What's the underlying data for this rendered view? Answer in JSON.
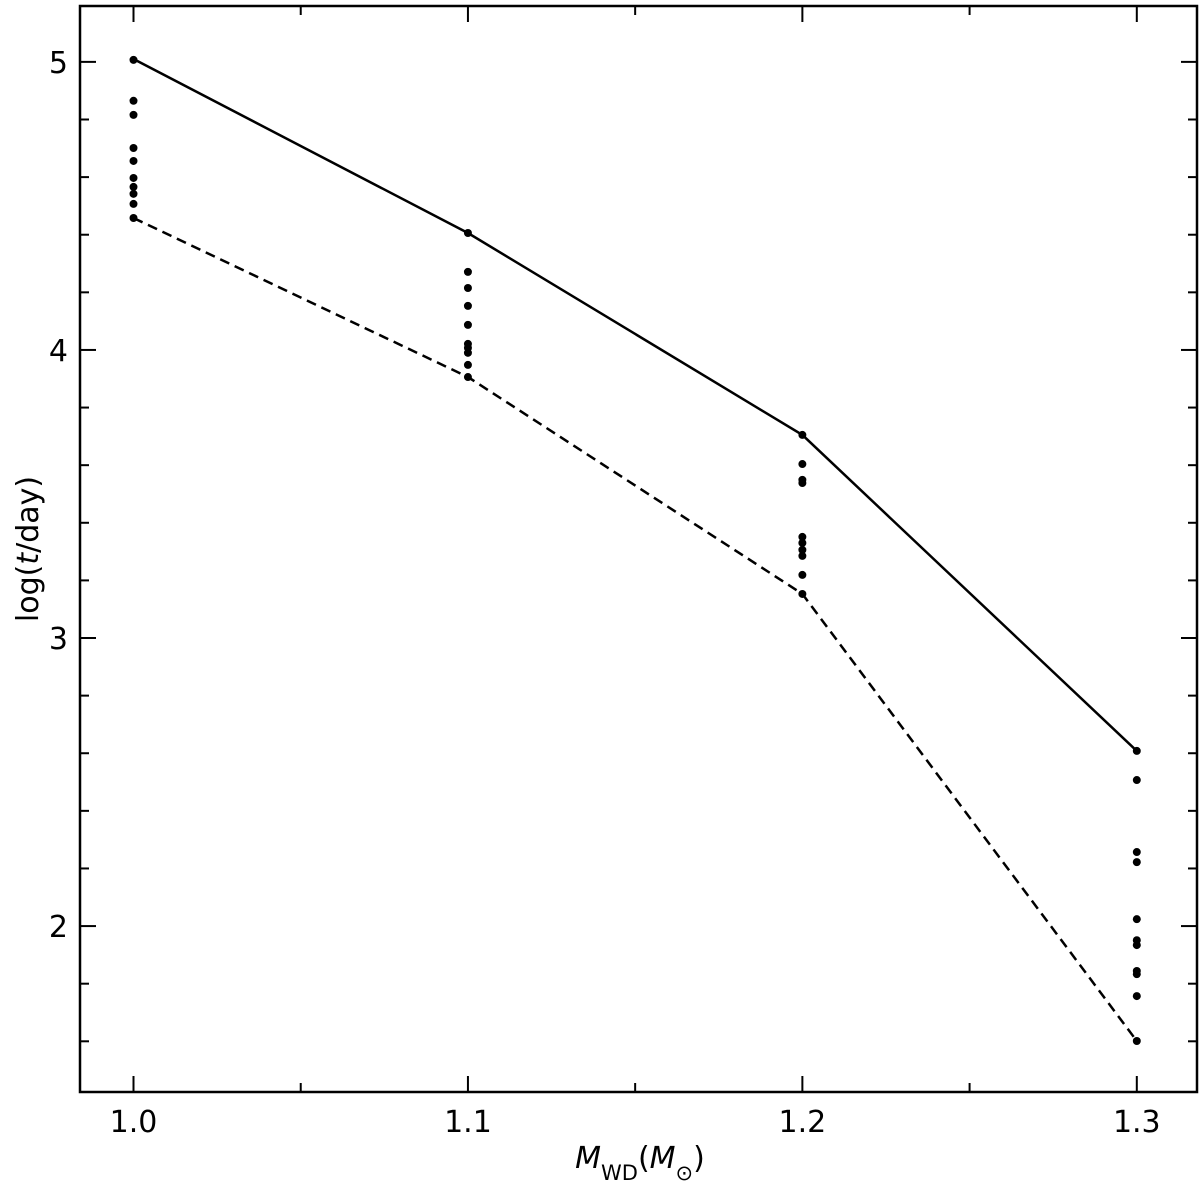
{
  "chart_data": {
    "type": "line",
    "xlabel": [
      {
        "text": "M",
        "italic": true
      },
      {
        "text": "WD",
        "sub": true
      },
      {
        "text": "("
      },
      {
        "text": "M",
        "italic": true
      },
      {
        "text": "⊙",
        "sub": true
      },
      {
        "text": ")"
      }
    ],
    "ylabel": [
      {
        "text": "log("
      },
      {
        "text": "t",
        "italic": true
      },
      {
        "text": "/day)"
      }
    ],
    "xlim": [
      0.984,
      1.318
    ],
    "ylim": [
      1.424,
      5.194
    ],
    "xticks": [
      {
        "value": 1.0,
        "label": "1.0"
      },
      1.1,
      1.2,
      1.3
    ],
    "yticks": [
      2,
      3,
      4,
      5
    ],
    "xminorticks": [
      1.05,
      1.15,
      1.25
    ],
    "yminorticks": [
      1.6,
      1.8,
      2.2,
      2.4,
      2.6,
      2.8,
      3.2,
      3.4,
      3.6,
      3.8,
      4.2,
      4.4,
      4.6,
      4.8,
      5.2
    ],
    "series": [
      {
        "type": "line",
        "linestyle": "solid",
        "color": "#000000",
        "x": [
          1.0,
          1.1,
          1.2,
          1.3
        ],
        "values": [
          5.01,
          4.406,
          3.705,
          2.608
        ]
      },
      {
        "type": "line",
        "linestyle": "dashed",
        "color": "#000000",
        "x": [
          1.0,
          1.1,
          1.2,
          1.3
        ],
        "values": [
          4.458,
          3.906,
          3.153,
          1.601
        ]
      },
      {
        "type": "scatter",
        "color": "#000000",
        "x": [
          1.0,
          1.0,
          1.0,
          1.0,
          1.0,
          1.0,
          1.0,
          1.0,
          1.0,
          1.0,
          1.1,
          1.1,
          1.1,
          1.1,
          1.1,
          1.1,
          1.1,
          1.1,
          1.1,
          1.1,
          1.2,
          1.2,
          1.2,
          1.2,
          1.2,
          1.2,
          1.2,
          1.2,
          1.2,
          1.2,
          1.3,
          1.3,
          1.3,
          1.3,
          1.3,
          1.3,
          1.3,
          1.3,
          1.3,
          1.3,
          1.3
        ],
        "values": [
          5.007,
          4.865,
          4.816,
          4.701,
          4.656,
          4.597,
          4.566,
          4.542,
          4.507,
          4.458,
          4.406,
          4.271,
          4.215,
          4.153,
          4.087,
          4.021,
          4.007,
          3.99,
          3.948,
          3.906,
          3.705,
          3.604,
          3.549,
          3.538,
          3.351,
          3.33,
          3.306,
          3.285,
          3.219,
          3.153,
          2.608,
          2.507,
          2.257,
          2.222,
          2.024,
          1.951,
          1.934,
          1.844,
          1.833,
          1.757,
          1.601
        ]
      }
    ]
  }
}
